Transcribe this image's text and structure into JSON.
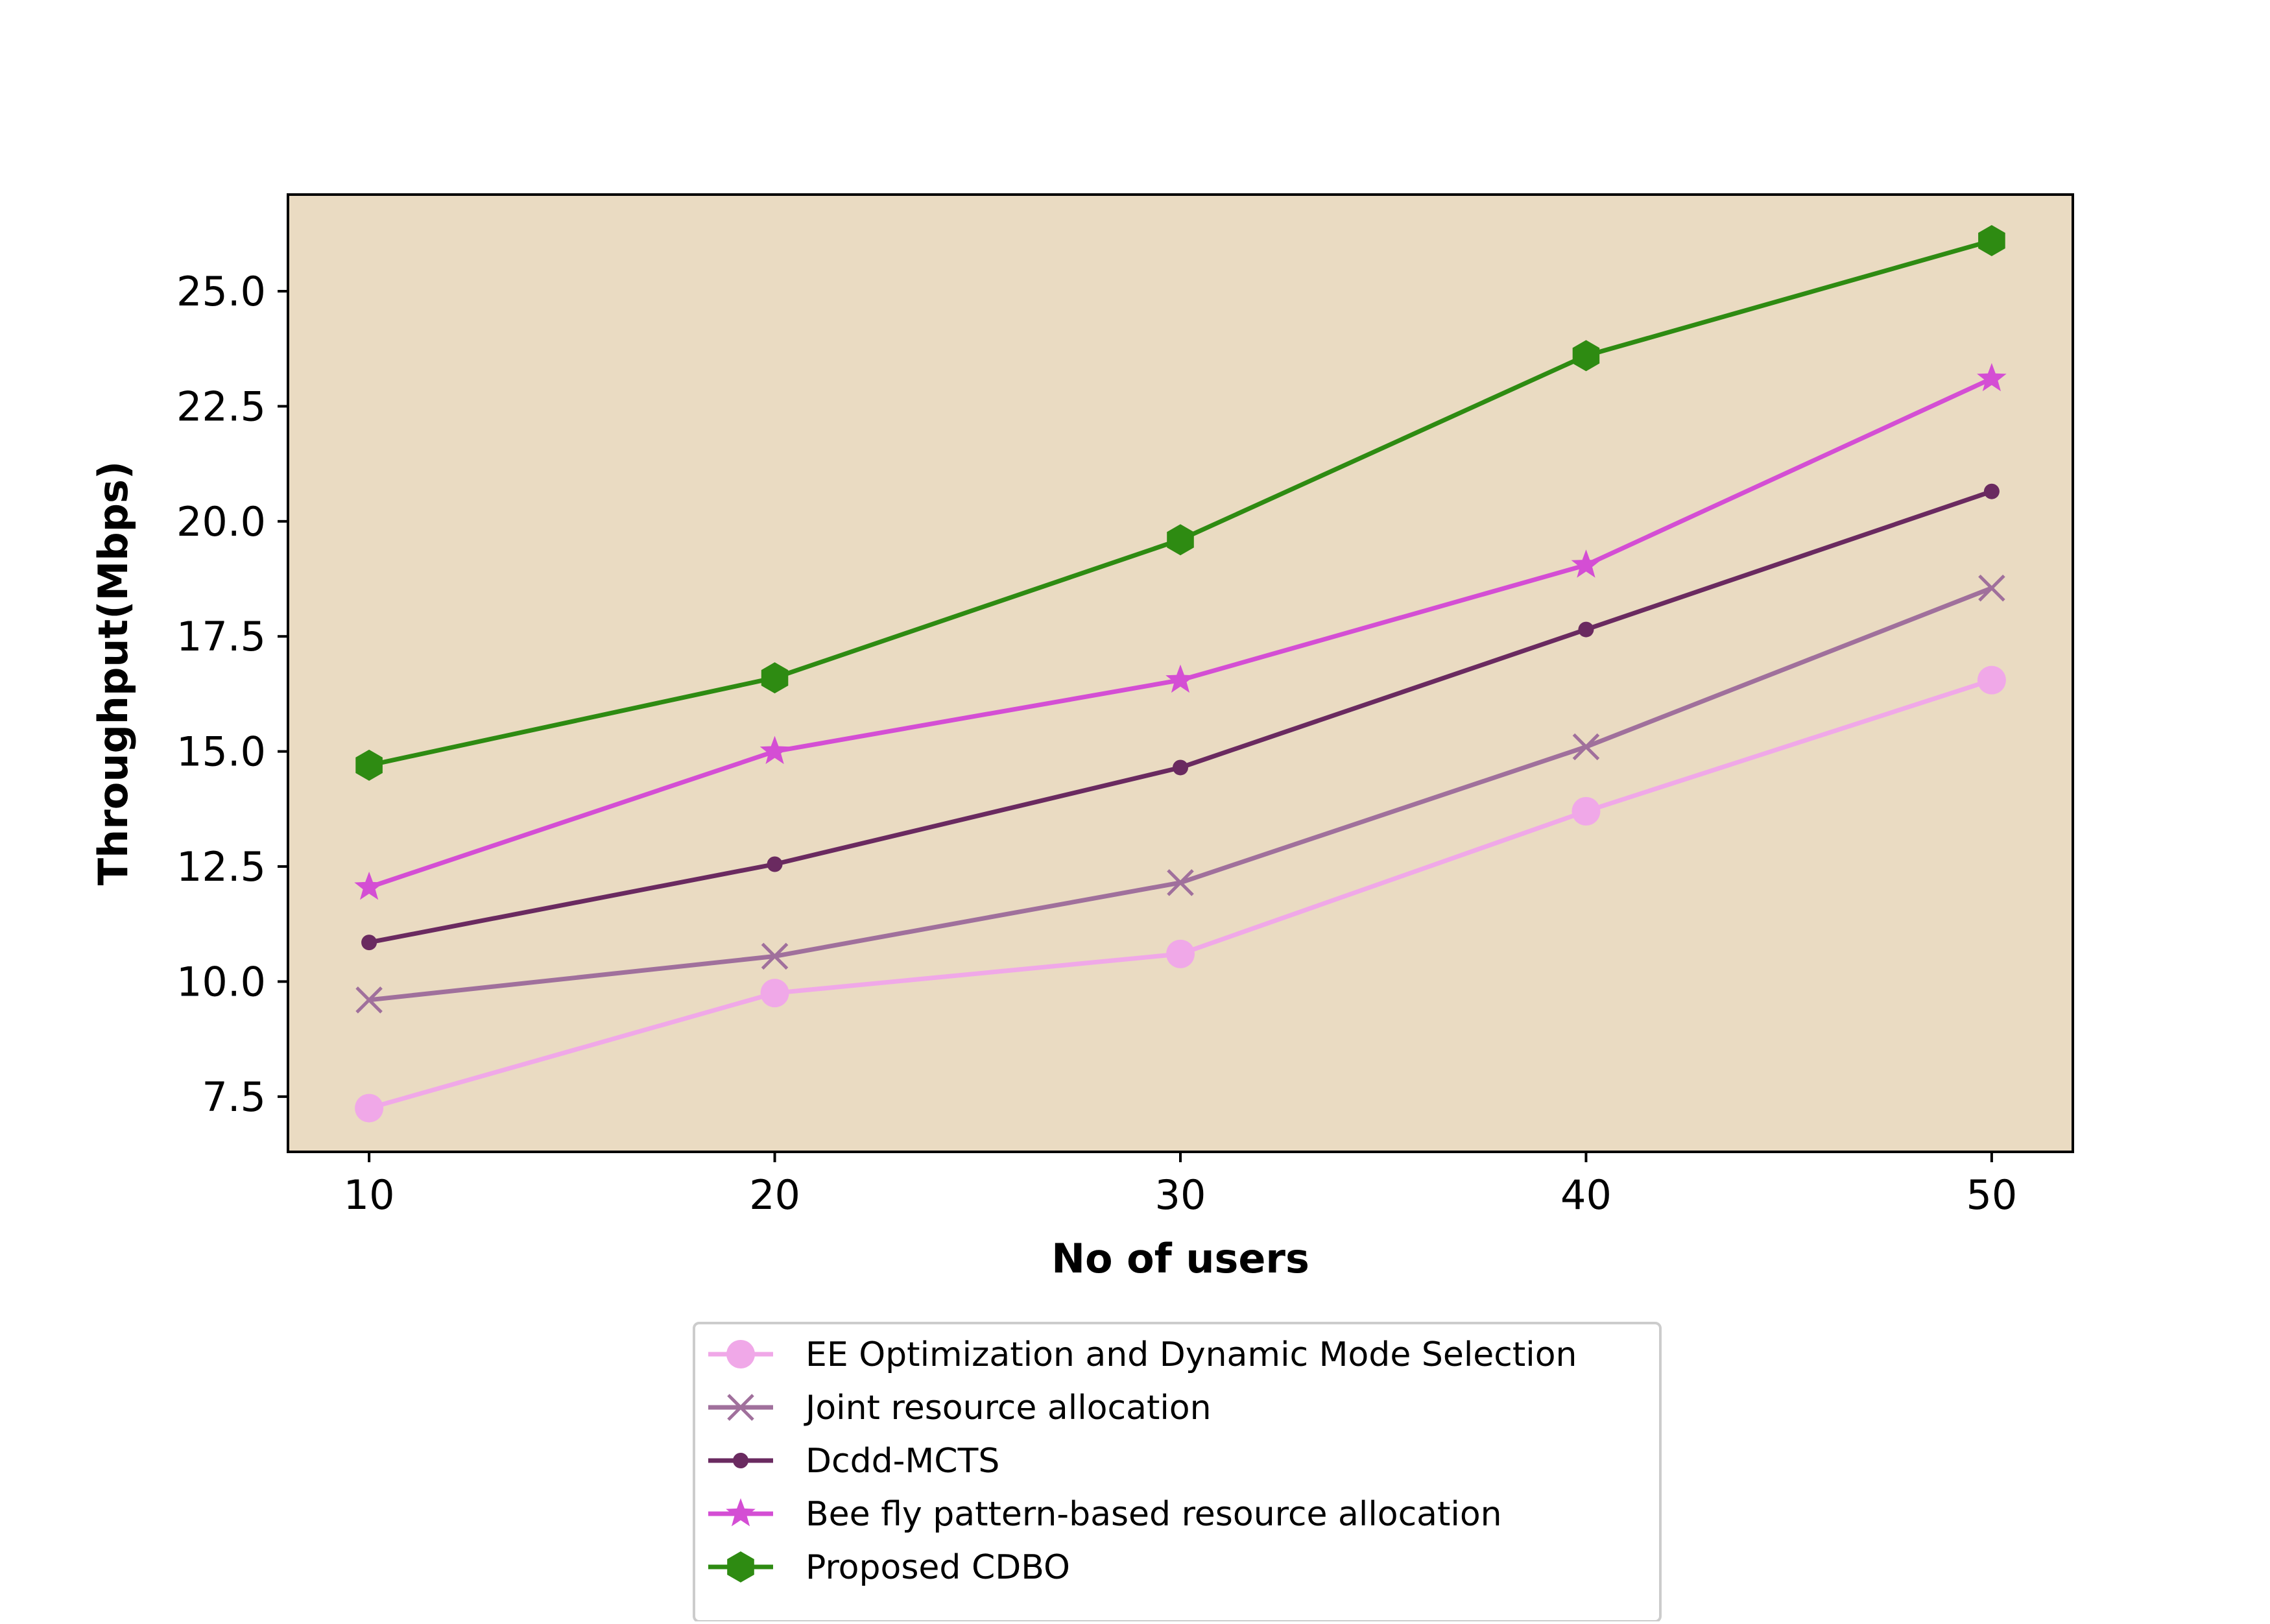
{
  "chart_data": {
    "type": "line",
    "xlabel": "No of users",
    "ylabel": "Throughput(Mbps)",
    "x": [
      10,
      20,
      30,
      40,
      50
    ],
    "x_ticks": [
      "10",
      "20",
      "30",
      "40",
      "50"
    ],
    "y_ticks": [
      "7.5",
      "10.0",
      "12.5",
      "15.0",
      "17.5",
      "20.0",
      "22.5",
      "25.0"
    ],
    "y_tick_values": [
      7.5,
      10.0,
      12.5,
      15.0,
      17.5,
      20.0,
      22.5,
      25.0
    ],
    "xlim": [
      8,
      52
    ],
    "ylim": [
      6.3,
      27.1
    ],
    "grid": false,
    "plot_background": "#eadbc2",
    "legend_position": "below plot, centered",
    "series": [
      {
        "name": "EE Optimization and Dynamic Mode Selection",
        "values": [
          7.25,
          9.75,
          10.6,
          13.7,
          16.55
        ],
        "color": "#f0a8e8",
        "marker": "circle"
      },
      {
        "name": "Joint resource allocation",
        "values": [
          9.6,
          10.55,
          12.15,
          15.1,
          18.55
        ],
        "color": "#a0709c",
        "marker": "x"
      },
      {
        "name": "Dcdd-MCTS",
        "values": [
          10.85,
          12.55,
          14.65,
          17.65,
          20.65
        ],
        "color": "#6a2a60",
        "marker": "dot"
      },
      {
        "name": "Bee fly pattern-based resource allocation",
        "values": [
          12.05,
          15.0,
          16.55,
          19.05,
          23.1
        ],
        "color": "#d44ed4",
        "marker": "star"
      },
      {
        "name": "Proposed CDBO",
        "values": [
          14.7,
          16.6,
          19.6,
          23.6,
          26.1
        ],
        "color": "#2e8b12",
        "marker": "hexagon"
      }
    ]
  }
}
